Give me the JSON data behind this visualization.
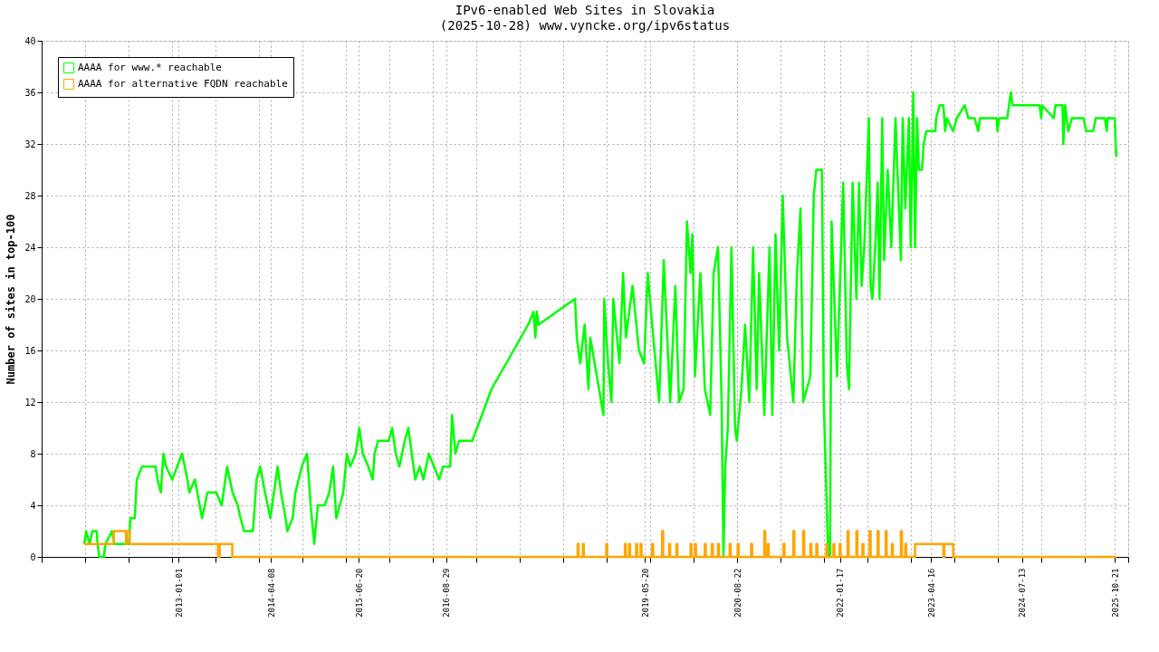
{
  "chart_data": {
    "type": "line",
    "title": "IPv6-enabled Web Sites in Slovakia",
    "subtitle": "(2025-10-28) www.vyncke.org/ipv6status",
    "ylabel": "Number of sites in top-100",
    "xlim": [
      "2011-02-18",
      "2025-12-26"
    ],
    "ylim": [
      0,
      40
    ],
    "yticks": [
      0,
      4,
      8,
      12,
      16,
      20,
      24,
      28,
      32,
      36,
      40
    ],
    "xticks": [
      {
        "value": "2011-02-18",
        "label": null
      },
      {
        "value": "2011-09-23",
        "label": null
      },
      {
        "value": "2012-04-27",
        "label": null
      },
      {
        "value": "2012-11-30",
        "label": null
      },
      "2013-01-01",
      {
        "value": "2013-07-05",
        "label": null
      },
      {
        "value": "2014-02-07",
        "label": null
      },
      "2014-04-08",
      {
        "value": "2014-09-12",
        "label": null
      },
      {
        "value": "2015-04-17",
        "label": null
      },
      "2015-06-20",
      {
        "value": "2015-11-20",
        "label": null
      },
      {
        "value": "2016-06-24",
        "label": null
      },
      "2016-08-29",
      {
        "value": "2017-01-27",
        "label": null
      },
      {
        "value": "2017-09-01",
        "label": null
      },
      {
        "value": "2018-04-06",
        "label": null
      },
      {
        "value": "2018-11-09",
        "label": null
      },
      "2019-05-20",
      {
        "value": "2019-06-14",
        "label": null
      },
      {
        "value": "2020-01-17",
        "label": null
      },
      {
        "value": "2020-08-21",
        "label": null
      },
      "2020-08-22",
      {
        "value": "2021-03-26",
        "label": null
      },
      {
        "value": "2021-10-29",
        "label": null
      },
      "2022-01-17",
      {
        "value": "2022-06-03",
        "label": null
      },
      {
        "value": "2023-01-06",
        "label": null
      },
      "2023-04-16",
      {
        "value": "2023-08-11",
        "label": null
      },
      {
        "value": "2024-03-15",
        "label": null
      },
      "2024-07-13",
      {
        "value": "2024-10-18",
        "label": null
      },
      {
        "value": "2025-05-23",
        "label": null
      },
      "2025-10-21",
      {
        "value": "2025-12-26",
        "label": null
      }
    ],
    "grid": true,
    "legend": "top left",
    "series": [
      {
        "name": "AAAA for www.* reachable",
        "color": "#00ff00",
        "type": "line",
        "x": [
          "2011-09-19",
          "2011-09-28",
          "2011-10-15",
          "2011-10-29",
          "2011-11-20",
          "2011-11-24",
          "2011-12-03",
          "2011-12-25",
          "2012-01-03",
          "2012-02-04",
          "2012-02-17",
          "2012-04-28",
          "2012-05-06",
          "2012-05-28",
          "2012-06-07",
          "2012-07-03",
          "2012-09-09",
          "2012-09-18",
          "2012-10-05",
          "2012-10-18",
          "2012-10-31",
          "2012-12-01",
          "2013-01-19",
          "2013-02-15",
          "2013-02-24",
          "2013-03-24",
          "2013-04-29",
          "2013-05-26",
          "2013-07-09",
          "2013-08-05",
          "2013-09-01",
          "2013-09-28",
          "2013-10-24",
          "2013-11-07",
          "2013-11-25",
          "2014-01-08",
          "2014-01-26",
          "2014-02-13",
          "2014-03-09",
          "2014-04-05",
          "2014-05-11",
          "2014-05-28",
          "2014-06-20",
          "2014-06-29",
          "2014-07-25",
          "2014-08-08",
          "2014-09-09",
          "2014-10-05",
          "2014-10-23",
          "2014-11-10",
          "2014-11-28",
          "2015-01-01",
          "2015-01-24",
          "2015-02-12",
          "2015-02-28",
          "2015-04-04",
          "2015-04-22",
          "2015-05-09",
          "2015-06-05",
          "2015-06-23",
          "2015-07-10",
          "2015-08-07",
          "2015-08-29",
          "2015-09-07",
          "2015-09-25",
          "2015-11-17",
          "2015-12-04",
          "2015-12-22",
          "2016-01-09",
          "2016-02-05",
          "2016-02-23",
          "2016-03-11",
          "2016-03-28",
          "2016-04-20",
          "2016-05-08",
          "2016-06-04",
          "2016-06-30",
          "2016-07-26",
          "2016-08-14",
          "2016-09-19",
          "2016-09-28",
          "2016-10-15",
          "2016-11-02",
          "2017-01-07",
          "2017-04-13",
          "2017-10-13",
          "2017-11-09",
          "2017-11-18",
          "2017-11-25",
          "2017-12-04",
          "2018-06-04",
          "2018-06-13",
          "2018-06-30",
          "2018-07-22",
          "2018-08-10",
          "2018-08-19",
          "2018-10-24",
          "2018-10-28",
          "2018-11-16",
          "2018-12-03",
          "2018-12-12",
          "2019-01-12",
          "2019-01-30",
          "2019-02-13",
          "2019-03-18",
          "2019-04-19",
          "2019-05-15",
          "2019-06-02",
          "2019-06-24",
          "2019-07-29",
          "2019-08-21",
          "2019-09-22",
          "2019-10-18",
          "2019-11-05",
          "2019-11-28",
          "2019-12-15",
          "2020-01-02",
          "2020-01-11",
          "2020-01-24",
          "2020-02-20",
          "2020-03-13",
          "2020-04-09",
          "2020-04-26",
          "2020-05-18",
          "2020-06-05",
          "2020-06-14",
          "2020-06-23",
          "2020-07-06",
          "2020-07-24",
          "2020-08-11",
          "2020-08-20",
          "2020-09-12",
          "2020-09-30",
          "2020-10-21",
          "2020-11-09",
          "2020-11-27",
          "2020-12-09",
          "2021-01-04",
          "2021-01-30",
          "2021-02-13",
          "2021-03-01",
          "2021-03-19",
          "2021-04-06",
          "2021-04-28",
          "2021-05-29",
          "2021-06-16",
          "2021-07-04",
          "2021-07-17",
          "2021-08-22",
          "2021-09-08",
          "2021-09-21",
          "2021-10-19",
          "2021-10-28",
          "2021-11-19",
          "2021-11-28",
          "2021-12-06",
          "2022-01-02",
          "2022-02-02",
          "2022-02-20",
          "2022-03-03",
          "2022-03-21",
          "2022-04-09",
          "2022-04-22",
          "2022-05-05",
          "2022-05-18",
          "2022-06-10",
          "2022-06-19",
          "2022-06-28",
          "2022-07-15",
          "2022-07-24",
          "2022-08-02",
          "2022-08-16",
          "2022-08-25",
          "2022-09-12",
          "2022-09-30",
          "2022-10-21",
          "2022-11-17",
          "2022-11-26",
          "2022-12-09",
          "2022-12-27",
          "2023-01-05",
          "2023-01-18",
          "2023-01-27",
          "2023-02-06",
          "2023-02-15",
          "2023-03-02",
          "2023-03-11",
          "2023-03-24",
          "2023-05-08",
          "2023-05-12",
          "2023-05-30",
          "2023-06-17",
          "2023-06-26",
          "2023-07-04",
          "2023-08-05",
          "2023-08-23",
          "2023-10-02",
          "2023-10-20",
          "2023-11-20",
          "2023-12-08",
          "2023-12-17",
          "2024-03-09",
          "2024-03-13",
          "2024-03-22",
          "2024-05-01",
          "2024-05-19",
          "2024-05-28",
          "2024-10-09",
          "2024-10-18",
          "2024-10-22",
          "2024-12-19",
          "2024-12-28",
          "2025-02-01",
          "2025-02-05",
          "2025-02-14",
          "2025-03-02",
          "2025-03-20",
          "2025-05-17",
          "2025-05-30",
          "2025-07-04",
          "2025-07-17",
          "2025-09-01",
          "2025-09-10",
          "2025-09-14",
          "2025-10-20",
          "2025-10-24",
          "2025-10-28"
        ],
        "values": [
          1,
          2,
          1,
          2,
          2,
          1,
          0,
          0,
          1,
          2,
          1,
          1,
          3,
          3,
          6,
          7,
          7,
          6,
          5,
          8,
          7,
          6,
          8,
          6,
          5,
          6,
          3,
          5,
          5,
          4,
          7,
          5,
          4,
          3,
          2,
          2,
          6,
          7,
          5,
          3,
          7,
          5,
          3,
          2,
          3,
          5,
          7,
          8,
          4,
          1,
          4,
          4,
          5,
          7,
          3,
          5,
          8,
          7,
          8,
          10,
          8,
          7,
          6,
          8,
          9,
          9,
          10,
          8,
          7,
          9,
          10,
          8,
          6,
          7,
          6,
          8,
          7,
          6,
          7,
          7,
          11,
          8,
          9,
          9,
          13,
          18,
          19,
          17,
          19,
          18,
          20,
          17,
          15,
          18,
          13,
          17,
          11,
          20,
          15,
          12,
          20,
          15,
          22,
          17,
          21,
          16,
          15,
          22,
          18,
          12,
          23,
          12,
          21,
          12,
          13,
          26,
          22,
          25,
          14,
          22,
          13,
          11,
          22,
          24,
          12,
          0,
          7,
          10,
          24,
          10,
          9,
          13,
          18,
          12,
          24,
          13,
          22,
          11,
          24,
          11,
          25,
          16,
          28,
          17,
          12,
          22,
          27,
          12,
          14,
          28,
          30,
          30,
          12,
          0,
          0,
          26,
          14,
          29,
          15,
          13,
          29,
          20,
          29,
          21,
          24,
          34,
          21,
          20,
          25,
          29,
          20,
          34,
          23,
          30,
          24,
          34,
          23,
          34,
          27,
          34,
          24,
          36,
          24,
          34,
          30,
          30,
          32,
          33,
          33,
          34,
          35,
          35,
          33,
          34,
          33,
          34,
          35,
          34,
          34,
          33,
          34,
          34,
          33,
          34,
          34,
          36,
          35,
          35,
          34,
          35,
          34,
          35,
          35,
          32,
          35,
          33,
          34,
          34,
          33,
          33,
          34,
          34,
          33,
          34,
          34,
          32,
          31
        ]
      },
      {
        "name": "AAAA for alternative FQDN reachable",
        "color": "#ffa500",
        "type": "step",
        "x": [
          "2011-09-19",
          "2012-02-13",
          "2012-04-14",
          "2012-04-18",
          "2012-05-03",
          "2013-07-18",
          "2013-07-26",
          "2013-09-27",
          "2018-06-17",
          "2018-06-22",
          "2018-07-13",
          "2018-07-18",
          "2018-11-07",
          "2018-11-12",
          "2019-02-08",
          "2019-02-13",
          "2019-03-01",
          "2019-03-06",
          "2019-04-05",
          "2019-04-10",
          "2019-04-27",
          "2019-05-02",
          "2019-06-24",
          "2019-06-29",
          "2019-08-13",
          "2019-08-18",
          "2019-09-17",
          "2019-09-22",
          "2019-10-23",
          "2019-10-28",
          "2020-01-02",
          "2020-01-07",
          "2020-01-24",
          "2020-01-29",
          "2020-03-13",
          "2020-03-18",
          "2020-04-17",
          "2020-04-22",
          "2020-05-18",
          "2020-05-23",
          "2020-07-15",
          "2020-07-20",
          "2020-08-24",
          "2020-08-29",
          "2020-10-30",
          "2020-11-04",
          "2021-01-04",
          "2021-01-09",
          "2021-01-21",
          "2021-01-26",
          "2021-04-10",
          "2021-04-15",
          "2021-05-29",
          "2021-06-03",
          "2021-07-17",
          "2021-07-22",
          "2021-08-22",
          "2021-08-27",
          "2021-09-21",
          "2021-09-26",
          "2021-11-10",
          "2021-11-15",
          "2021-12-15",
          "2021-12-20",
          "2022-01-15",
          "2022-01-20",
          "2022-02-24",
          "2022-03-01",
          "2022-04-09",
          "2022-04-14",
          "2022-05-09",
          "2022-05-14",
          "2022-06-14",
          "2022-06-19",
          "2022-07-24",
          "2022-07-29",
          "2022-09-02",
          "2022-09-07",
          "2022-10-03",
          "2022-10-08",
          "2022-11-17",
          "2022-11-22",
          "2022-12-09",
          "2022-12-14",
          "2023-01-27",
          "2023-06-17",
          "2023-06-22",
          "2023-08-05",
          "2025-10-28"
        ],
        "values": [
          1,
          2,
          1,
          2,
          1,
          0,
          1,
          0,
          1,
          0,
          1,
          0,
          1,
          0,
          1,
          0,
          1,
          0,
          1,
          0,
          1,
          0,
          1,
          0,
          2,
          0,
          1,
          0,
          1,
          0,
          1,
          0,
          1,
          0,
          1,
          0,
          1,
          0,
          1,
          0,
          1,
          0,
          1,
          0,
          1,
          0,
          2,
          0,
          1,
          0,
          1,
          0,
          2,
          0,
          2,
          0,
          1,
          0,
          1,
          0,
          1,
          0,
          1,
          0,
          1,
          0,
          2,
          0,
          2,
          0,
          1,
          0,
          2,
          0,
          2,
          0,
          2,
          0,
          1,
          0,
          2,
          0,
          1,
          0,
          1,
          0,
          1,
          0,
          0
        ]
      }
    ]
  }
}
